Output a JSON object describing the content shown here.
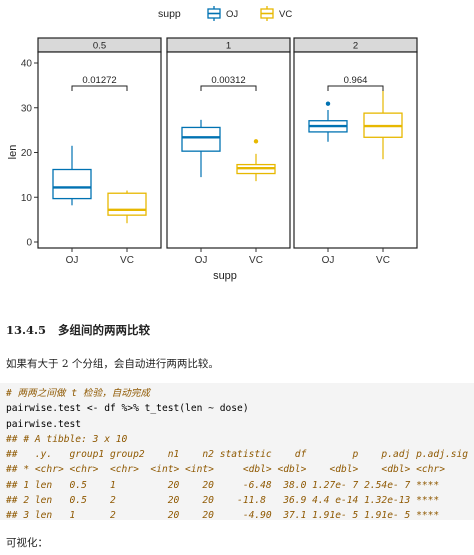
{
  "chart_data": {
    "type": "boxplot",
    "legend": {
      "title": "supp",
      "position": "top",
      "entries": [
        "OJ",
        "VC"
      ]
    },
    "colors": {
      "OJ": "#0072b2",
      "VC": "#e7b800"
    },
    "xlabel": "supp",
    "ylabel": "len",
    "ylim": [
      0,
      40
    ],
    "y_ticks": [
      0,
      10,
      20,
      30,
      40
    ],
    "categories": [
      "OJ",
      "VC"
    ],
    "panels": [
      {
        "strip": "0.5",
        "bracket_label": "0.01272",
        "boxes": [
          {
            "group": "OJ",
            "lower_whisker": 8.2,
            "q1": 9.7,
            "median": 12.2,
            "q3": 16.2,
            "upper_whisker": 21.5,
            "outliers": []
          },
          {
            "group": "VC",
            "lower_whisker": 4.2,
            "q1": 6.0,
            "median": 7.2,
            "q3": 10.9,
            "upper_whisker": 11.5,
            "outliers": []
          }
        ]
      },
      {
        "strip": "1",
        "bracket_label": "0.00312",
        "boxes": [
          {
            "group": "OJ",
            "lower_whisker": 14.5,
            "q1": 20.3,
            "median": 23.4,
            "q3": 25.6,
            "upper_whisker": 27.3,
            "outliers": []
          },
          {
            "group": "VC",
            "lower_whisker": 13.6,
            "q1": 15.3,
            "median": 16.5,
            "q3": 17.3,
            "upper_whisker": 19.7,
            "outliers": [
              22.5
            ]
          }
        ]
      },
      {
        "strip": "2",
        "bracket_label": "0.964",
        "boxes": [
          {
            "group": "OJ",
            "lower_whisker": 22.4,
            "q1": 24.6,
            "median": 25.9,
            "q3": 27.1,
            "upper_whisker": 29.5,
            "outliers": [
              30.9
            ]
          },
          {
            "group": "VC",
            "lower_whisker": 18.5,
            "q1": 23.4,
            "median": 25.9,
            "q3": 28.8,
            "upper_whisker": 33.9,
            "outliers": []
          }
        ]
      }
    ]
  },
  "document": {
    "section_number": "13.4.5",
    "section_title": "多组间的两两比较",
    "paragraph": "如果有大于 2 个分组，会自动进行两两比较。",
    "code_lines": [
      {
        "text": "# 两两之间做 t 检验，自动完成",
        "kind": "comment"
      },
      {
        "text": "pairwise.test <- df %>% t_test(len ~ dose)",
        "kind": "code"
      },
      {
        "text": "pairwise.test",
        "kind": "code"
      },
      {
        "text": "## # A tibble: 3 x 10",
        "kind": "comment"
      },
      {
        "text": "##   .y.   group1 group2    n1    n2 statistic    df        p    p.adj p.adj.signif",
        "kind": "comment"
      },
      {
        "text": "## * <chr> <chr>  <chr>  <int> <int>     <dbl> <dbl>    <dbl>    <dbl> <chr>",
        "kind": "comment"
      },
      {
        "text": "## 1 len   0.5    1         20    20     -6.48  38.0 1.27e- 7 2.54e- 7 ****",
        "kind": "comment"
      },
      {
        "text": "## 2 len   0.5    2         20    20    -11.8   36.9 4.4 e-14 1.32e-13 ****",
        "kind": "comment"
      },
      {
        "text": "## 3 len   1      2         20    20     -4.90  37.1 1.91e- 5 1.91e- 5 ****",
        "kind": "comment"
      }
    ],
    "footer": "可视化："
  }
}
